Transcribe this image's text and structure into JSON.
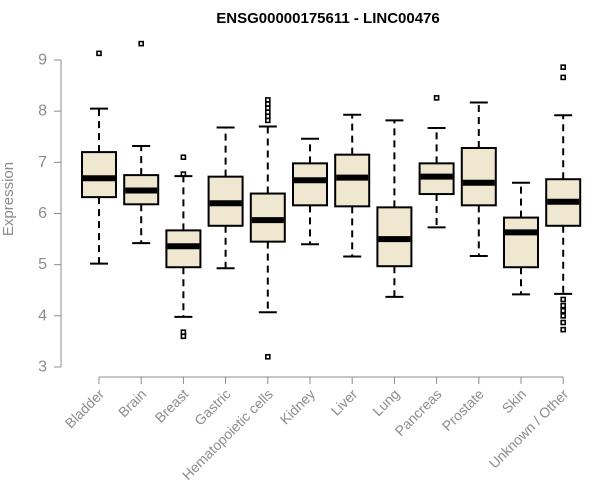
{
  "chart_data": {
    "type": "boxplot",
    "title": "ENSG00000175611 - LINC00476",
    "xlabel": "",
    "ylabel": "Expression",
    "ylim": [
      3,
      9.4
    ],
    "yticks": [
      3,
      4,
      5,
      6,
      7,
      8,
      9
    ],
    "grid": false,
    "categories": [
      "Bladder",
      "Brain",
      "Breast",
      "Gastric",
      "Hematopoietic cells",
      "Kidney",
      "Liver",
      "Lung",
      "Pancreas",
      "Prostate",
      "Skin",
      "Unknown / Other"
    ],
    "boxes": [
      {
        "category": "Bladder",
        "whisker_low": 5.02,
        "q1": 6.32,
        "median": 6.69,
        "q3": 7.2,
        "whisker_high": 8.05,
        "outliers": [
          9.13
        ]
      },
      {
        "category": "Brain",
        "whisker_low": 5.42,
        "q1": 6.18,
        "median": 6.45,
        "q3": 6.75,
        "whisker_high": 7.32,
        "outliers": [
          9.32
        ]
      },
      {
        "category": "Breast",
        "whisker_low": 3.98,
        "q1": 4.95,
        "median": 5.36,
        "q3": 5.67,
        "whisker_high": 6.73,
        "outliers": [
          3.6,
          3.68,
          6.77,
          7.1
        ]
      },
      {
        "category": "Gastric",
        "whisker_low": 4.93,
        "q1": 5.76,
        "median": 6.2,
        "q3": 6.72,
        "whisker_high": 7.68,
        "outliers": []
      },
      {
        "category": "Hematopoietic cells",
        "whisker_low": 4.07,
        "q1": 5.45,
        "median": 5.87,
        "q3": 6.39,
        "whisker_high": 7.7,
        "outliers": [
          3.2,
          7.82,
          7.9,
          7.98,
          8.06,
          8.14,
          8.22
        ]
      },
      {
        "category": "Kidney",
        "whisker_low": 5.4,
        "q1": 6.16,
        "median": 6.65,
        "q3": 6.98,
        "whisker_high": 7.46,
        "outliers": []
      },
      {
        "category": "Liver",
        "whisker_low": 5.16,
        "q1": 6.14,
        "median": 6.7,
        "q3": 7.15,
        "whisker_high": 7.93,
        "outliers": []
      },
      {
        "category": "Lung",
        "whisker_low": 4.37,
        "q1": 4.97,
        "median": 5.5,
        "q3": 6.12,
        "whisker_high": 7.82,
        "outliers": []
      },
      {
        "category": "Pancreas",
        "whisker_low": 5.73,
        "q1": 6.38,
        "median": 6.72,
        "q3": 6.98,
        "whisker_high": 7.67,
        "outliers": [
          8.26
        ]
      },
      {
        "category": "Prostate",
        "whisker_low": 5.17,
        "q1": 6.16,
        "median": 6.6,
        "q3": 7.28,
        "whisker_high": 8.17,
        "outliers": []
      },
      {
        "category": "Skin",
        "whisker_low": 4.42,
        "q1": 4.95,
        "median": 5.63,
        "q3": 5.92,
        "whisker_high": 6.6,
        "outliers": []
      },
      {
        "category": "Unknown / Other",
        "whisker_low": 4.43,
        "q1": 5.76,
        "median": 6.23,
        "q3": 6.67,
        "whisker_high": 7.92,
        "outliers": [
          3.73,
          3.87,
          4.0,
          4.1,
          4.2,
          4.32,
          8.66,
          8.86
        ]
      }
    ]
  }
}
